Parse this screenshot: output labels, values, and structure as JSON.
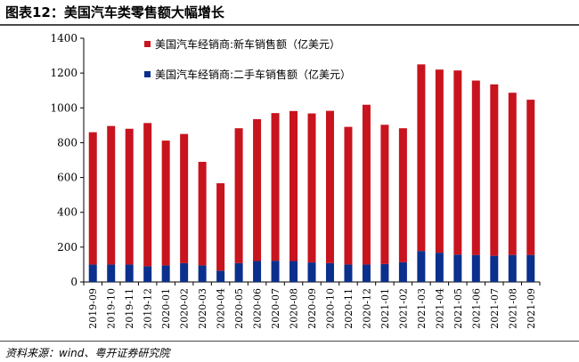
{
  "header": {
    "title": "图表12：美国汽车类零售额大幅增长"
  },
  "footer": {
    "source": "资料来源：wind、粤开证券研究院"
  },
  "chart_data": {
    "type": "bar",
    "stacked": true,
    "title": "",
    "xlabel": "",
    "ylabel": "",
    "ylim": [
      0,
      1400
    ],
    "yticks": [
      0,
      200,
      400,
      600,
      800,
      1000,
      1200,
      1400
    ],
    "grid": false,
    "legend_position": "top-center",
    "categories": [
      "2019-09",
      "2019-10",
      "2019-11",
      "2019-12",
      "2020-01",
      "2020-02",
      "2020-03",
      "2020-04",
      "2020-05",
      "2020-06",
      "2020-07",
      "2020-08",
      "2020-09",
      "2020-10",
      "2020-11",
      "2020-12",
      "2021-01",
      "2021-02",
      "2021-03",
      "2021-04",
      "2021-05",
      "2021-06",
      "2021-07",
      "2021-08",
      "2021-09"
    ],
    "series": [
      {
        "name": "美国汽车经销商:二手车销售额（亿美元）",
        "color": "#0a2f8c",
        "values": [
          100,
          100,
          100,
          90,
          95,
          108,
          95,
          65,
          108,
          120,
          122,
          120,
          112,
          108,
          100,
          100,
          103,
          113,
          178,
          168,
          157,
          155,
          150,
          155,
          155
        ]
      },
      {
        "name": "美国汽车经销商:新车销售额（亿美元）",
        "color": "#c8141e",
        "values": [
          760,
          796,
          780,
          823,
          717,
          742,
          595,
          502,
          775,
          815,
          848,
          862,
          856,
          875,
          791,
          918,
          800,
          770,
          1072,
          1052,
          1058,
          1002,
          985,
          932,
          892
        ]
      }
    ]
  }
}
